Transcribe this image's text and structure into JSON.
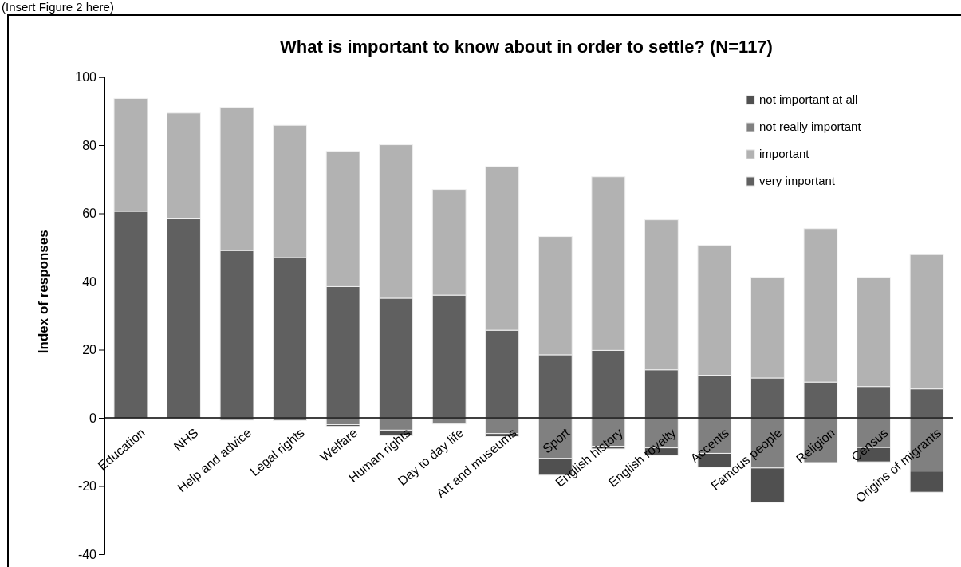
{
  "chart_data": {
    "type": "bar",
    "title": "What is important to know about in order to settle? (N=117)",
    "ylabel": "Index of responses",
    "annotations": [
      "(Insert Figure 2 here)"
    ],
    "categories": [
      "Education",
      "NHS",
      "Help and advice",
      "Legal rights",
      "Welfare",
      "Human rights",
      "Day to day life",
      "Art and museums",
      "Sport",
      "English history",
      "English royalty",
      "Accents",
      "Famous people",
      "Religion",
      "Census",
      "Origins of migrants"
    ],
    "stacked": true,
    "series": [
      {
        "name": "very important",
        "color": "#606060",
        "values": [
          60.6,
          58.6,
          49.1,
          47.0,
          38.5,
          35.1,
          36.0,
          25.7,
          18.5,
          19.8,
          14.1,
          12.5,
          11.7,
          10.5,
          9.2,
          8.5
        ]
      },
      {
        "name": "important",
        "color": "#b2b2b2",
        "values": [
          33.1,
          30.8,
          42.0,
          38.8,
          39.7,
          45.0,
          31.0,
          48.0,
          34.7,
          50.9,
          44.0,
          38.1,
          29.5,
          45.0,
          32.0,
          39.4
        ]
      },
      {
        "name": "not really important",
        "color": "#808080",
        "values": [
          0,
          0,
          -0.7,
          -0.8,
          -2.0,
          -3.6,
          -1.8,
          -4.6,
          -11.9,
          -8.3,
          -8.8,
          -10.4,
          -14.7,
          -13.1,
          -8.7,
          -15.6
        ]
      },
      {
        "name": "not important at all",
        "color": "#505050",
        "values": [
          0,
          0,
          0,
          0,
          -0.5,
          -1.6,
          0,
          -0.9,
          -4.9,
          -0.8,
          -2.2,
          -4.1,
          -10.1,
          0,
          -4.2,
          -6.2
        ]
      }
    ],
    "ylim": [
      -40,
      100
    ],
    "yticks": [
      -40,
      -20,
      0,
      20,
      40,
      60,
      80,
      100
    ],
    "grid": false,
    "legend": "top right"
  }
}
